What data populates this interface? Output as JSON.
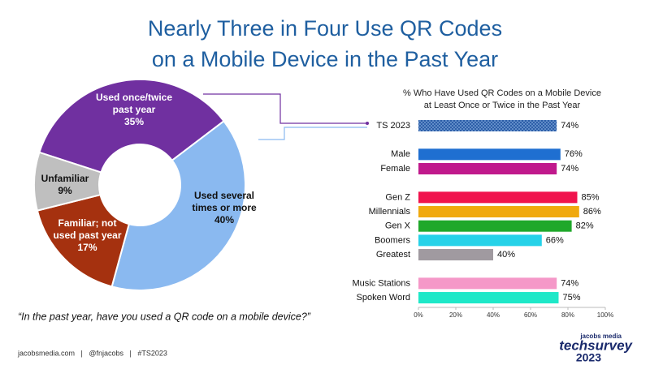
{
  "header": {
    "title": [
      "Nearly Three in Four Use QR Codes",
      "on a Mobile Device in the Past Year"
    ]
  },
  "chart_data": [
    {
      "type": "donut",
      "categories": [
        "Used once/twice past year",
        "Used several times or more",
        "Familiar; not used past year",
        "Unfamiliar"
      ],
      "values": [
        35,
        40,
        17,
        9
      ],
      "value_labels": [
        "35%",
        "40%",
        "17%",
        "9%"
      ],
      "colors": [
        "#7030a0",
        "#8ab9f0",
        "#a5310f",
        "#bfbfbf"
      ]
    },
    {
      "type": "hbar",
      "title": [
        "% Who Have Used QR Codes on a Mobile Device",
        "at Least Once or Twice in the Past Year"
      ],
      "categories": [
        "TS 2023",
        null,
        "Male",
        "Female",
        null,
        "Gen Z",
        "Millennials",
        "Gen X",
        "Boomers",
        "Greatest",
        null,
        "Music Stations",
        "Spoken Word"
      ],
      "values": [
        74,
        null,
        76,
        74,
        null,
        85,
        86,
        82,
        66,
        40,
        null,
        74,
        75
      ],
      "value_labels": [
        "74%",
        null,
        "76%",
        "74%",
        null,
        "85%",
        "86%",
        "82%",
        "66%",
        "40%",
        null,
        "74%",
        "75%"
      ],
      "colors": [
        "#2e5fa8",
        null,
        "#1f6fd1",
        "#c0198c",
        null,
        "#f0134d",
        "#f0a90e",
        "#1fa82a",
        "#26d2e8",
        "#a09aa0",
        null,
        "#f598c8",
        "#1ee8c8"
      ],
      "xlim": [
        0,
        100
      ],
      "xticks": [
        {
          "value": 0,
          "label": "0%"
        },
        {
          "value": 20,
          "label": "20%"
        },
        {
          "value": 40,
          "label": "40%"
        },
        {
          "value": 60,
          "label": "60%"
        },
        {
          "value": 80,
          "label": "80%"
        },
        {
          "value": 100,
          "label": "100%"
        }
      ]
    }
  ],
  "footer": {
    "question": "“In the past year, have you used a QR code on a mobile device?”",
    "credits": "jacobsmedia.com   |   @fnjacobs   |   #TS2023",
    "logo": [
      "jacobs media",
      "techsurvey",
      "2023"
    ]
  }
}
